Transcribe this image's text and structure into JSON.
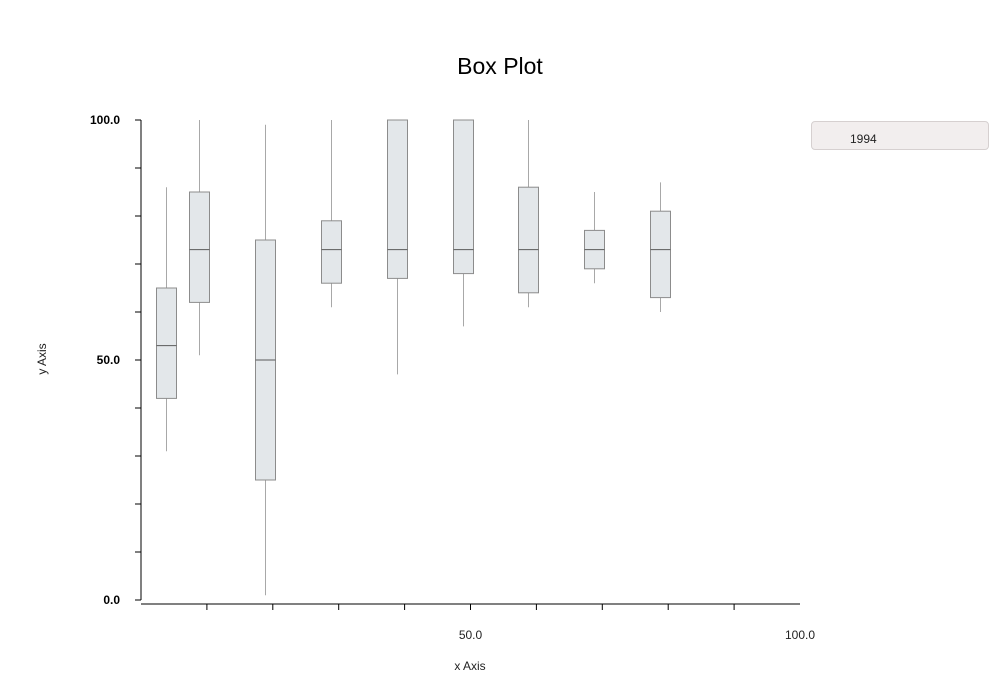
{
  "chart_data": {
    "type": "box",
    "title": "Box Plot",
    "xlabel": "x Axis",
    "ylabel": "y Axis",
    "xlim": [
      0,
      100
    ],
    "ylim": [
      0,
      100
    ],
    "x_tick_values": [
      10,
      20,
      30,
      40,
      50,
      60,
      70,
      80,
      90
    ],
    "x_tick_labels": [
      {
        "value": 50,
        "label": "50.0"
      },
      {
        "value": 100,
        "label": "100.0"
      }
    ],
    "y_tick_values": [
      0,
      10,
      20,
      30,
      40,
      50,
      60,
      70,
      80,
      90,
      100
    ],
    "y_tick_labels": [
      {
        "value": 0,
        "label": "0.0"
      },
      {
        "value": 50,
        "label": "50.0"
      },
      {
        "value": 100,
        "label": "100.0"
      }
    ],
    "legend_position": "top-right",
    "series": [
      {
        "name": "1994",
        "color": "#e3e7ea",
        "stroke": "#8c8c8c",
        "median_color": "#5a5a5a",
        "boxes": [
          {
            "x": 5,
            "min": 31,
            "q1": 42,
            "median": 53,
            "q3": 65,
            "max": 86
          },
          {
            "x": 10,
            "min": 51,
            "q1": 62,
            "median": 73,
            "q3": 85,
            "max": 100
          },
          {
            "x": 20,
            "min": 1,
            "q1": 25,
            "median": 50,
            "q3": 75,
            "max": 99
          },
          {
            "x": 30,
            "min": 61,
            "q1": 66,
            "median": 73,
            "q3": 79,
            "max": 100
          },
          {
            "x": 40,
            "min": 47,
            "q1": 67,
            "median": 73,
            "q3": 100,
            "max": 100
          },
          {
            "x": 50,
            "min": 57,
            "q1": 68,
            "median": 73,
            "q3": 100,
            "max": 100
          },
          {
            "x": 60,
            "min": 61,
            "q1": 64,
            "median": 73,
            "q3": 86,
            "max": 100
          },
          {
            "x": 70,
            "min": 66,
            "q1": 69,
            "median": 73,
            "q3": 77,
            "max": 85
          },
          {
            "x": 80,
            "min": 60,
            "q1": 63,
            "median": 73,
            "q3": 81,
            "max": 87
          }
        ]
      }
    ]
  }
}
